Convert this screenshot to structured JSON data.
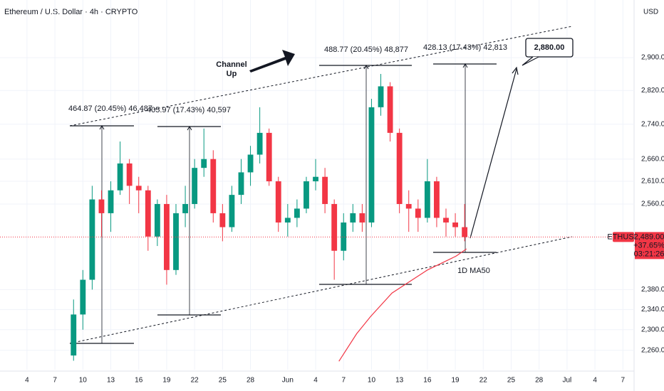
{
  "chart_data": {
    "type": "candlestick",
    "title": "Ethereum / U.S. Dollar · 4h · CRYPTO",
    "currency": "USD",
    "log_scale": true,
    "grid": true,
    "up_color": "#089981",
    "down_color": "#f23645",
    "x": [
      8,
      9,
      10,
      11,
      12,
      13,
      14,
      15,
      16,
      17,
      18,
      19,
      20,
      21,
      22,
      23,
      24,
      25,
      26,
      27,
      28,
      29,
      30,
      31,
      32,
      33,
      34,
      35,
      36,
      37,
      38,
      39,
      40,
      41,
      42,
      43,
      44,
      45,
      46,
      47,
      48,
      49,
      50
    ],
    "open": [
      2250,
      2330,
      2400,
      2570,
      2540,
      2590,
      2650,
      2600,
      2590,
      2490,
      2560,
      2420,
      2540,
      2560,
      2640,
      2660,
      2540,
      2510,
      2580,
      2630,
      2670,
      2720,
      2610,
      2520,
      2530,
      2550,
      2610,
      2620,
      2560,
      2460,
      2520,
      2540,
      2520,
      2780,
      2830,
      2720,
      2560,
      2550,
      2530,
      2610,
      2530,
      2520,
      2510
    ],
    "high": [
      2360,
      2420,
      2600,
      2590,
      2610,
      2700,
      2660,
      2620,
      2600,
      2570,
      2580,
      2560,
      2600,
      2660,
      2730,
      2680,
      2560,
      2600,
      2660,
      2690,
      2780,
      2730,
      2620,
      2560,
      2570,
      2620,
      2660,
      2640,
      2570,
      2540,
      2560,
      2560,
      2800,
      2860,
      2840,
      2730,
      2590,
      2570,
      2660,
      2620,
      2550,
      2540,
      2560
    ],
    "low": [
      2240,
      2300,
      2380,
      2490,
      2500,
      2580,
      2560,
      2540,
      2460,
      2470,
      2390,
      2410,
      2510,
      2550,
      2620,
      2520,
      2480,
      2500,
      2560,
      2600,
      2650,
      2600,
      2500,
      2490,
      2510,
      2540,
      2590,
      2540,
      2400,
      2440,
      2500,
      2500,
      2510,
      2760,
      2700,
      2540,
      2500,
      2500,
      2520,
      2510,
      2490,
      2490,
      2480
    ],
    "close": [
      2330,
      2400,
      2570,
      2540,
      2590,
      2650,
      2600,
      2590,
      2490,
      2560,
      2420,
      2540,
      2560,
      2640,
      2660,
      2540,
      2510,
      2580,
      2630,
      2670,
      2720,
      2610,
      2520,
      2530,
      2550,
      2610,
      2620,
      2560,
      2460,
      2520,
      2540,
      2520,
      2780,
      2830,
      2720,
      2560,
      2550,
      2530,
      2610,
      2530,
      2520,
      2510,
      2489
    ],
    "ma": {
      "name": "1D MA50",
      "color": "#f23645",
      "x": [
        36.5,
        38.4,
        39.9,
        42.2,
        46,
        49.1,
        50.2
      ],
      "values": [
        2239,
        2292,
        2326,
        2373,
        2420,
        2449,
        2464
      ]
    },
    "xlim": [
      0.1,
      68.2
    ],
    "ylim": [
      2223,
      3046
    ],
    "xticks": [
      {
        "value": 3,
        "label": "4"
      },
      {
        "value": 6,
        "label": "7"
      },
      {
        "value": 9,
        "label": "10"
      },
      {
        "value": 12,
        "label": "13"
      },
      {
        "value": 15,
        "label": "16"
      },
      {
        "value": 18,
        "label": "19"
      },
      {
        "value": 21,
        "label": "22"
      },
      {
        "value": 24,
        "label": "25"
      },
      {
        "value": 27,
        "label": "28"
      },
      {
        "value": 31,
        "label": "Jun"
      },
      {
        "value": 34,
        "label": "4"
      },
      {
        "value": 37,
        "label": "7"
      },
      {
        "value": 40,
        "label": "10"
      },
      {
        "value": 43,
        "label": "13"
      },
      {
        "value": 46,
        "label": "16"
      },
      {
        "value": 49,
        "label": "19"
      },
      {
        "value": 52,
        "label": "22"
      },
      {
        "value": 55,
        "label": "25"
      },
      {
        "value": 58,
        "label": "28"
      },
      {
        "value": 61,
        "label": "Jul"
      },
      {
        "value": 64,
        "label": "4"
      },
      {
        "value": 67,
        "label": "7"
      }
    ],
    "yticks": [
      {
        "value": 2260,
        "label": "2,260.00"
      },
      {
        "value": 2300,
        "label": "2,300.00"
      },
      {
        "value": 2340,
        "label": "2,340.00"
      },
      {
        "value": 2380,
        "label": "2,380.00"
      },
      {
        "value": 2560,
        "label": "2,560.00"
      },
      {
        "value": 2610,
        "label": "2,610.00"
      },
      {
        "value": 2660,
        "label": "2,660.00"
      },
      {
        "value": 2740,
        "label": "2,740.00"
      },
      {
        "value": 2820,
        "label": "2,820.00"
      },
      {
        "value": 2900,
        "label": "2,900.00"
      }
    ],
    "last_price": {
      "symbol": "ETHUSD",
      "value": 2489,
      "label": "2,489.00",
      "change": "+37.65%",
      "countdown": "03:21:26"
    },
    "target": {
      "value": 2880,
      "label": "2,880.00"
    },
    "annotations": {
      "channel_line1": "Channel",
      "channel_line2": "Up",
      "measures": [
        "464.87 (20.45%) 46,487",
        "405.97 (17.43%) 40,597",
        "488.77 (20.45%) 48,877",
        "428.13 (17.43%) 42,813"
      ]
    }
  }
}
